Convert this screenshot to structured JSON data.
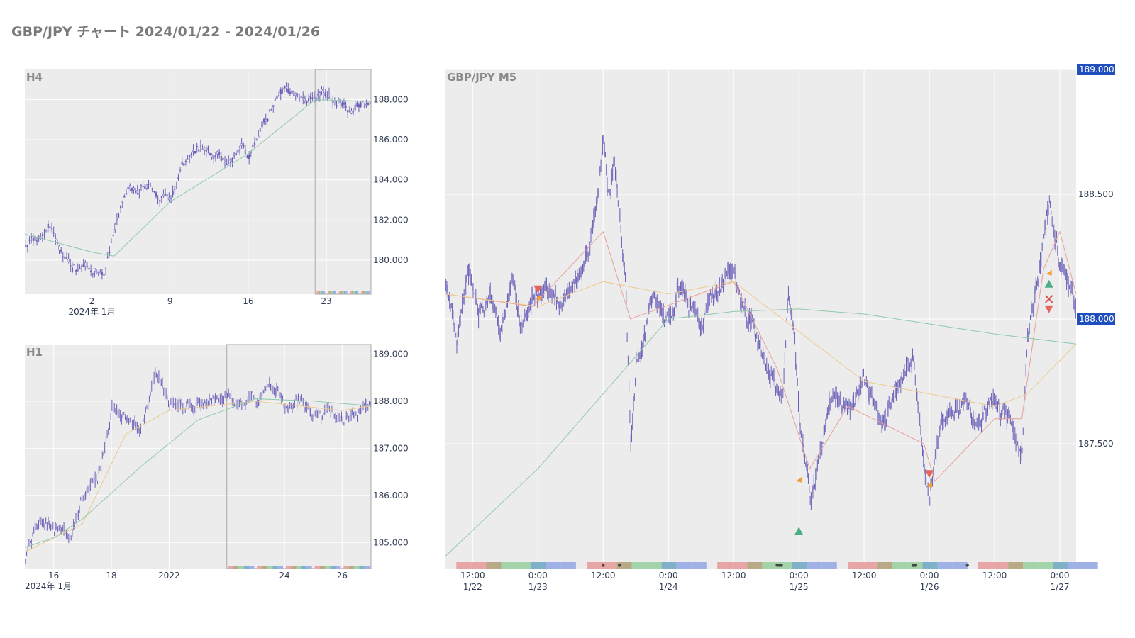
{
  "page": {
    "title": "GBP/JPY チャート 2024/01/22 - 2024/01/26"
  },
  "colors": {
    "candle": "#6a5fb8",
    "ma_fast": "#e89f9a",
    "ma_mid": "#eec98e",
    "ma_slow": "#8fc9a9",
    "plot_bg": "#ececec",
    "grid": "#ffffff",
    "badge_bg": "#1f4fbf",
    "session_red": "#e8a5a5",
    "session_olive": "#b9aa87",
    "session_green": "#a3d3a8",
    "session_teal": "#7fb1c9",
    "session_blue": "#9fb1e6",
    "marker_buy": "#4cae84",
    "marker_sell": "#e5645d",
    "marker_exit": "#f0a13a",
    "marker_close": "#d9504a"
  },
  "chart_data": [
    {
      "type": "candlestick",
      "name": "H4",
      "title": "H4",
      "x_range": [
        "2023-12-27",
        "2024-01-27"
      ],
      "ylim": [
        178.3,
        189.5
      ],
      "yticks": [
        180,
        182,
        184,
        186,
        188
      ],
      "ytick_labels": [
        "180.000",
        "182.000",
        "184.000",
        "186.000",
        "188.000"
      ],
      "xticks": [
        {
          "date": "2024-01-02",
          "label": "2"
        },
        {
          "date": "2024-01-09",
          "label": "9"
        },
        {
          "date": "2024-01-16",
          "label": "16"
        },
        {
          "date": "2024-01-23",
          "label": "23"
        }
      ],
      "xaxis_sublabel": "2024年 1月",
      "highlight_range": [
        "2024-01-22",
        "2024-01-27"
      ],
      "anchors": [
        [
          "2023-12-27",
          180.7
        ],
        [
          "2023-12-28",
          181.0
        ],
        [
          "2023-12-29",
          181.8
        ],
        [
          "2023-12-31",
          179.6
        ],
        [
          "2024-01-01",
          179.8
        ],
        [
          "2024-01-02",
          179.6
        ],
        [
          "2024-01-03",
          179.3
        ],
        [
          "2024-01-04",
          181.5
        ],
        [
          "2024-01-05",
          183.2
        ],
        [
          "2024-01-07",
          183.8
        ],
        [
          "2024-01-08",
          183.4
        ],
        [
          "2024-01-09",
          183.2
        ],
        [
          "2024-01-10",
          184.8
        ],
        [
          "2024-01-11",
          185.5
        ],
        [
          "2024-01-12",
          185.3
        ],
        [
          "2024-01-14",
          184.8
        ],
        [
          "2024-01-15",
          185.4
        ],
        [
          "2024-01-16",
          185.3
        ],
        [
          "2024-01-17",
          186.6
        ],
        [
          "2024-01-18",
          187.6
        ],
        [
          "2024-01-19",
          188.3
        ],
        [
          "2024-01-21",
          188.0
        ],
        [
          "2024-01-22",
          188.2
        ],
        [
          "2024-01-23",
          188.1
        ],
        [
          "2024-01-24",
          188.0
        ],
        [
          "2024-01-25",
          187.5
        ],
        [
          "2024-01-26",
          187.8
        ],
        [
          "2024-01-27",
          188.1
        ]
      ],
      "moving_averages": [
        {
          "role": "slow",
          "points": [
            [
              "2023-12-27",
              181.3
            ],
            [
              "2024-01-02",
              180.4
            ],
            [
              "2024-01-04",
              180.2
            ],
            [
              "2024-01-09",
              182.9
            ],
            [
              "2024-01-16",
              185.3
            ],
            [
              "2024-01-22",
              188.0
            ],
            [
              "2024-01-27",
              187.9
            ]
          ]
        }
      ]
    },
    {
      "type": "candlestick",
      "name": "H1",
      "title": "H1",
      "x_range": [
        "2024-01-15",
        "2024-01-27"
      ],
      "ylim": [
        184.45,
        189.2
      ],
      "yticks": [
        185,
        186,
        187,
        188,
        189
      ],
      "ytick_labels": [
        "185.000",
        "186.000",
        "187.000",
        "188.000",
        "189.000"
      ],
      "xticks": [
        {
          "date": "2024-01-16",
          "label": "16"
        },
        {
          "date": "2024-01-18",
          "label": "18"
        },
        {
          "date": "2024-01-20",
          "label": "2022"
        },
        {
          "date": "2024-01-24",
          "label": "24"
        },
        {
          "date": "2024-01-26",
          "label": "26"
        }
      ],
      "xaxis_sublabel": "2024年 1月",
      "highlight_range": [
        "2024-01-22",
        "2024-01-27"
      ],
      "anchors": [
        [
          "2024-01-15",
          184.7
        ],
        [
          "2024-01-15T12:00",
          185.6
        ],
        [
          "2024-01-16",
          185.3
        ],
        [
          "2024-01-16T12:00",
          185.1
        ],
        [
          "2024-01-17",
          185.9
        ],
        [
          "2024-01-17T12:00",
          186.2
        ],
        [
          "2024-01-18",
          187.8
        ],
        [
          "2024-01-18T12:00",
          187.6
        ],
        [
          "2024-01-19",
          187.4
        ],
        [
          "2024-01-19T12:00",
          188.5
        ],
        [
          "2024-01-20",
          187.8
        ],
        [
          "2024-01-21",
          187.9
        ],
        [
          "2024-01-22",
          188.1
        ],
        [
          "2024-01-23",
          188.0
        ],
        [
          "2024-01-23T12:00",
          188.4
        ],
        [
          "2024-01-24",
          187.9
        ],
        [
          "2024-01-24T12:00",
          188.1
        ],
        [
          "2024-01-25",
          187.6
        ],
        [
          "2024-01-25T12:00",
          187.8
        ],
        [
          "2024-01-26",
          187.5
        ],
        [
          "2024-01-26T12:00",
          187.7
        ],
        [
          "2024-01-27",
          188.1
        ]
      ],
      "moving_averages": [
        {
          "role": "mid",
          "points": [
            [
              "2024-01-15",
              184.8
            ],
            [
              "2024-01-17",
              185.4
            ],
            [
              "2024-01-18T12:00",
              187.3
            ],
            [
              "2024-01-20",
              187.8
            ],
            [
              "2024-01-23",
              188.0
            ],
            [
              "2024-01-26",
              187.8
            ],
            [
              "2024-01-27",
              187.9
            ]
          ]
        },
        {
          "role": "slow",
          "points": [
            [
              "2024-01-15",
              184.9
            ],
            [
              "2024-01-16",
              185.1
            ],
            [
              "2024-01-17",
              185.5
            ],
            [
              "2024-01-19",
              186.6
            ],
            [
              "2024-01-21",
              187.6
            ],
            [
              "2024-01-23",
              188.05
            ],
            [
              "2024-01-25",
              188.0
            ],
            [
              "2024-01-27",
              187.9
            ]
          ]
        }
      ]
    },
    {
      "type": "candlestick",
      "name": "M5",
      "title": "GBP/JPY M5",
      "x_range": [
        "2024-01-22T07:00",
        "2024-01-27T03:00"
      ],
      "ylim": [
        187.0,
        189.0
      ],
      "yticks": [
        187.5,
        188.0,
        188.5,
        189.0
      ],
      "ytick_labels": [
        "187.500",
        "188.000",
        "188.500",
        ""
      ],
      "price_badges": [
        "189.000",
        "188.000"
      ],
      "xticks": [
        {
          "date": "2024-01-22T12:00",
          "label": "12:00",
          "sublabel": "1/22"
        },
        {
          "date": "2024-01-23T00:00",
          "label": "0:00",
          "sublabel": "1/23"
        },
        {
          "date": "2024-01-23T12:00",
          "label": "12:00",
          "sublabel": ""
        },
        {
          "date": "2024-01-24T00:00",
          "label": "0:00",
          "sublabel": "1/24"
        },
        {
          "date": "2024-01-24T12:00",
          "label": "12:00",
          "sublabel": ""
        },
        {
          "date": "2024-01-25T00:00",
          "label": "0:00",
          "sublabel": "1/25"
        },
        {
          "date": "2024-01-25T12:00",
          "label": "12:00",
          "sublabel": ""
        },
        {
          "date": "2024-01-26T00:00",
          "label": "0:00",
          "sublabel": "1/26"
        },
        {
          "date": "2024-01-26T12:00",
          "label": "12:00",
          "sublabel": ""
        },
        {
          "date": "2024-01-27T00:00",
          "label": "0:00",
          "sublabel": "1/27"
        }
      ],
      "anchors": [
        [
          "2024-01-22T07:00",
          188.15
        ],
        [
          "2024-01-22T09:00",
          187.95
        ],
        [
          "2024-01-22T11:00",
          188.2
        ],
        [
          "2024-01-22T13:00",
          188.05
        ],
        [
          "2024-01-22T15:00",
          188.1
        ],
        [
          "2024-01-22T17:00",
          187.9
        ],
        [
          "2024-01-22T19:00",
          188.2
        ],
        [
          "2024-01-22T21:00",
          188.0
        ],
        [
          "2024-01-22T23:00",
          188.1
        ],
        [
          "2024-01-23T02:00",
          188.1
        ],
        [
          "2024-01-23T04:00",
          188.05
        ],
        [
          "2024-01-23T06:00",
          188.1
        ],
        [
          "2024-01-23T09:00",
          188.3
        ],
        [
          "2024-01-23T11:00",
          188.5
        ],
        [
          "2024-01-23T12:00",
          188.72
        ],
        [
          "2024-01-23T13:00",
          188.45
        ],
        [
          "2024-01-23T14:00",
          188.6
        ],
        [
          "2024-01-23T16:00",
          188.2
        ],
        [
          "2024-01-23T17:00",
          187.5
        ],
        [
          "2024-01-23T18:00",
          187.8
        ],
        [
          "2024-01-23T19:00",
          187.9
        ],
        [
          "2024-01-23T21:00",
          188.1
        ],
        [
          "2024-01-24T00:00",
          188.0
        ],
        [
          "2024-01-24T02:00",
          188.1
        ],
        [
          "2024-01-24T04:00",
          188.05
        ],
        [
          "2024-01-24T06:00",
          188.0
        ],
        [
          "2024-01-24T08:00",
          188.1
        ],
        [
          "2024-01-24T10:00",
          188.15
        ],
        [
          "2024-01-24T12:00",
          188.2
        ],
        [
          "2024-01-24T14:00",
          188.05
        ],
        [
          "2024-01-24T16:00",
          187.95
        ],
        [
          "2024-01-24T18:00",
          187.8
        ],
        [
          "2024-01-24T20:00",
          187.7
        ],
        [
          "2024-01-24T21:00",
          187.75
        ],
        [
          "2024-01-24T22:00",
          188.15
        ],
        [
          "2024-01-24T23:00",
          188.0
        ],
        [
          "2024-01-25T00:00",
          187.6
        ],
        [
          "2024-01-25T02:00",
          187.3
        ],
        [
          "2024-01-25T04:00",
          187.5
        ],
        [
          "2024-01-25T06:00",
          187.7
        ],
        [
          "2024-01-25T09:00",
          187.65
        ],
        [
          "2024-01-25T12:00",
          187.75
        ],
        [
          "2024-01-25T15:00",
          187.6
        ],
        [
          "2024-01-25T18:00",
          187.75
        ],
        [
          "2024-01-25T21:00",
          187.85
        ],
        [
          "2024-01-25T23:00",
          187.4
        ],
        [
          "2024-01-26T00:00",
          187.3
        ],
        [
          "2024-01-26T02:00",
          187.55
        ],
        [
          "2024-01-26T05:00",
          187.65
        ],
        [
          "2024-01-26T08:00",
          187.6
        ],
        [
          "2024-01-26T11:00",
          187.65
        ],
        [
          "2024-01-26T14:00",
          187.6
        ],
        [
          "2024-01-26T17:00",
          187.5
        ],
        [
          "2024-01-26T18:00",
          187.95
        ],
        [
          "2024-01-26T20:00",
          188.2
        ],
        [
          "2024-01-26T22:00",
          188.45
        ],
        [
          "2024-01-27T00:00",
          188.2
        ],
        [
          "2024-01-27T01:00",
          188.15
        ],
        [
          "2024-01-27T02:00",
          188.1
        ],
        [
          "2024-01-27T03:00",
          188.05
        ]
      ],
      "moving_averages": [
        {
          "role": "fast",
          "points": [
            [
              "2024-01-22T07:00",
              188.1
            ],
            [
              "2024-01-22T23:00",
              188.05
            ],
            [
              "2024-01-23T12:00",
              188.35
            ],
            [
              "2024-01-23T17:00",
              188.0
            ],
            [
              "2024-01-24T12:00",
              188.15
            ],
            [
              "2024-01-24T20:00",
              187.8
            ],
            [
              "2024-01-25T02:00",
              187.4
            ],
            [
              "2024-01-25T09:00",
              187.65
            ],
            [
              "2024-01-25T23:00",
              187.5
            ],
            [
              "2024-01-26T01:00",
              187.35
            ],
            [
              "2024-01-26T12:00",
              187.6
            ],
            [
              "2024-01-26T17:00",
              187.6
            ],
            [
              "2024-01-26T21:00",
              188.2
            ],
            [
              "2024-01-27T00:00",
              188.35
            ],
            [
              "2024-01-27T03:00",
              188.1
            ]
          ]
        },
        {
          "role": "mid",
          "points": [
            [
              "2024-01-22T07:00",
              188.1
            ],
            [
              "2024-01-23T00:00",
              188.05
            ],
            [
              "2024-01-23T12:00",
              188.15
            ],
            [
              "2024-01-24T00:00",
              188.1
            ],
            [
              "2024-01-24T12:00",
              188.15
            ],
            [
              "2024-01-25T00:00",
              187.95
            ],
            [
              "2024-01-25T12:00",
              187.75
            ],
            [
              "2024-01-26T00:00",
              187.7
            ],
            [
              "2024-01-26T12:00",
              187.65
            ],
            [
              "2024-01-26T18:00",
              187.7
            ],
            [
              "2024-01-27T03:00",
              187.9
            ]
          ]
        },
        {
          "role": "slow",
          "points": [
            [
              "2024-01-22T07:00",
              187.05
            ],
            [
              "2024-01-23T00:00",
              187.4
            ],
            [
              "2024-01-23T12:00",
              187.7
            ],
            [
              "2024-01-24T00:00",
              188.0
            ],
            [
              "2024-01-24T12:00",
              188.03
            ],
            [
              "2024-01-25T00:00",
              188.04
            ],
            [
              "2024-01-25T12:00",
              188.02
            ],
            [
              "2024-01-26T00:00",
              187.98
            ],
            [
              "2024-01-26T12:00",
              187.94
            ],
            [
              "2024-01-27T03:00",
              187.9
            ]
          ]
        }
      ],
      "trade_markers": [
        {
          "type": "sell",
          "x": "2024-01-23T00:00",
          "y": 188.12
        },
        {
          "type": "exit",
          "x": "2024-01-23T00:00",
          "y": 188.08
        },
        {
          "type": "buy",
          "x": "2024-01-25T00:00",
          "y": 187.15
        },
        {
          "type": "exit",
          "x": "2024-01-25T00:00",
          "y": 187.35
        },
        {
          "type": "sell",
          "x": "2024-01-26T00:00",
          "y": 187.38
        },
        {
          "type": "exit",
          "x": "2024-01-26T00:00",
          "y": 187.33
        },
        {
          "type": "buy",
          "x": "2024-01-26T22:00",
          "y": 188.14
        },
        {
          "type": "exit",
          "x": "2024-01-26T22:00",
          "y": 188.18
        },
        {
          "type": "close",
          "x": "2024-01-26T22:00",
          "y": 188.08
        },
        {
          "type": "sell",
          "x": "2024-01-26T22:00",
          "y": 188.04
        }
      ]
    }
  ]
}
